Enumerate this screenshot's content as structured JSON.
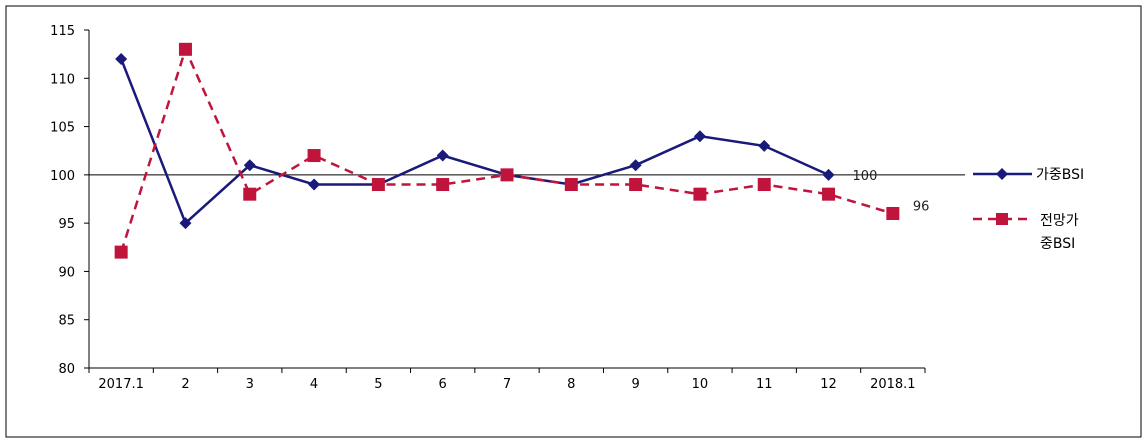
{
  "chart_data": {
    "type": "line",
    "categories": [
      "2017.1",
      "2",
      "3",
      "4",
      "5",
      "6",
      "7",
      "8",
      "9",
      "10",
      "11",
      "12",
      "2018.1"
    ],
    "ylim": [
      80,
      115
    ],
    "yticks": [
      80,
      85,
      90,
      95,
      100,
      105,
      110,
      115
    ],
    "reference_line": 100,
    "grid": false,
    "legend_position": "right",
    "series": [
      {
        "name": "가중BSI",
        "color": "#1a1a7a",
        "line_style": "solid",
        "marker": "diamond",
        "values": [
          112,
          95,
          101,
          99,
          99,
          102,
          100,
          99,
          101,
          104,
          103,
          100,
          null
        ]
      },
      {
        "name": "전망가중BSI",
        "legend_lines": [
          "전망가",
          "중BSI"
        ],
        "color": "#c0143c",
        "line_style": "dashed",
        "marker": "square",
        "values": [
          92,
          113,
          98,
          102,
          99,
          99,
          100,
          99,
          99,
          98,
          99,
          98,
          96
        ]
      }
    ],
    "annotations": [
      {
        "text": "100",
        "series": 0,
        "index": 11
      },
      {
        "text": "96",
        "series": 1,
        "index": 12
      }
    ]
  }
}
